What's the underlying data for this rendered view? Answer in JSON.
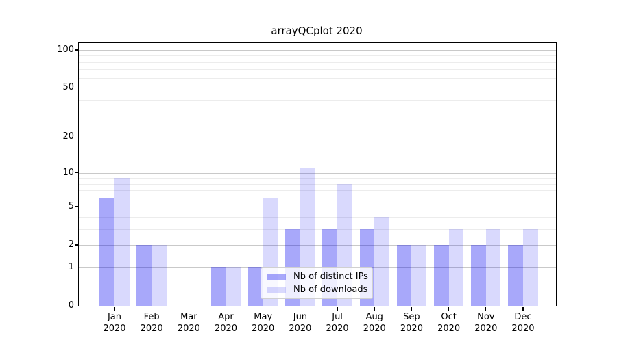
{
  "title": "arrayQCplot 2020",
  "legend": {
    "items": [
      {
        "label": "Nb of distinct IPs",
        "series": "distinct_ips"
      },
      {
        "label": "Nb of downloads",
        "series": "downloads"
      }
    ]
  },
  "colors": {
    "bar_base": "#0000f0",
    "bar_alpha_distinct_ips": 0.34,
    "bar_alpha_downloads": 0.15,
    "grid_major": "#c9c9c9",
    "grid_minor": "#ececec",
    "axis": "#000000",
    "legend_border": "#d0d0d0"
  },
  "chart_data": {
    "type": "bar",
    "title": "arrayQCplot 2020",
    "categories": [
      "Jan",
      "Feb",
      "Mar",
      "Apr",
      "May",
      "Jun",
      "Jul",
      "Aug",
      "Sep",
      "Oct",
      "Nov",
      "Dec"
    ],
    "category_subline": "2020",
    "series": [
      {
        "name": "Nb of distinct IPs",
        "key": "distinct_ips",
        "values": [
          6,
          2,
          0,
          1,
          1,
          3,
          3,
          3,
          2,
          2,
          2,
          2
        ]
      },
      {
        "name": "Nb of downloads",
        "key": "downloads",
        "values": [
          9,
          2,
          0,
          1,
          6,
          11,
          8,
          4,
          2,
          3,
          3,
          3
        ]
      }
    ],
    "xlabel": "",
    "ylabel": "",
    "y_scale": "log1p",
    "ylim": [
      0,
      113
    ],
    "y_major_ticks": [
      0,
      1,
      2,
      5,
      10,
      20,
      50,
      100
    ],
    "y_minor_ticks": [
      3,
      4,
      6,
      7,
      8,
      9,
      30,
      40,
      60,
      70,
      80,
      90
    ],
    "grid": true,
    "legend_position": "lower-center"
  }
}
